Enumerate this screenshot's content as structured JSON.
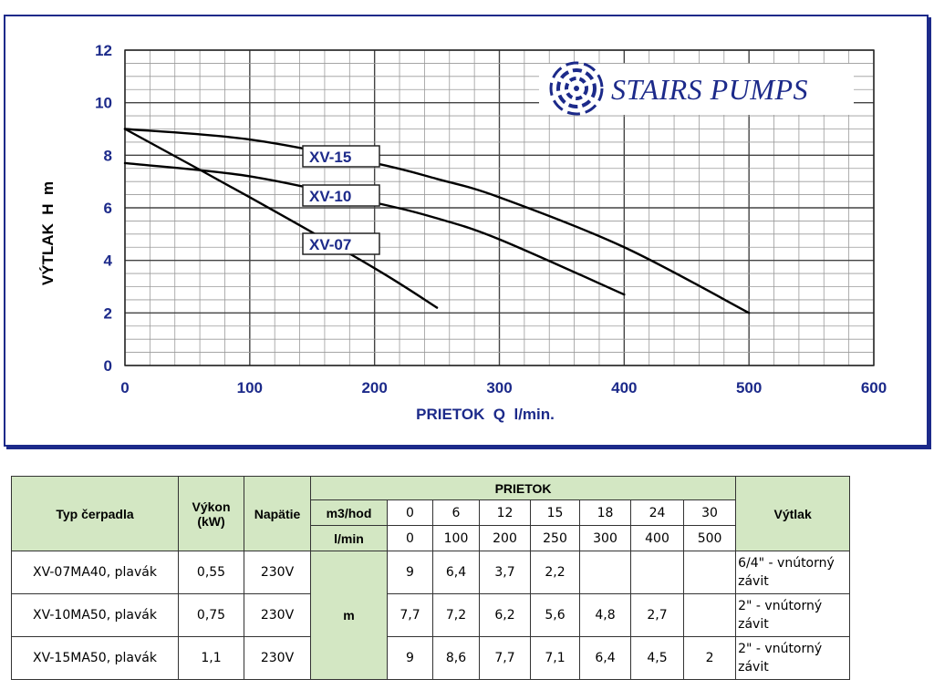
{
  "chart_data": {
    "type": "line",
    "xlabel": "PRIETOK  Q  l/min.",
    "ylabel": "VÝTLAK  H  m",
    "xlim": [
      0,
      600
    ],
    "ylim": [
      0,
      12
    ],
    "x_ticks": [
      "0",
      "100",
      "200",
      "300",
      "400",
      "500",
      "600"
    ],
    "y_ticks": [
      "0",
      "2",
      "4",
      "6",
      "8",
      "10",
      "12"
    ],
    "grid": true,
    "series": [
      {
        "name": "XV-07",
        "points": [
          [
            0,
            9.0
          ],
          [
            100,
            6.4
          ],
          [
            200,
            3.7
          ],
          [
            250,
            2.2
          ]
        ]
      },
      {
        "name": "XV-10",
        "points": [
          [
            0,
            7.7
          ],
          [
            100,
            7.2
          ],
          [
            200,
            6.2
          ],
          [
            250,
            5.6
          ],
          [
            300,
            4.8
          ],
          [
            400,
            2.7
          ]
        ]
      },
      {
        "name": "XV-15",
        "points": [
          [
            0,
            9.0
          ],
          [
            100,
            8.6
          ],
          [
            200,
            7.7
          ],
          [
            250,
            7.1
          ],
          [
            300,
            6.4
          ],
          [
            400,
            4.5
          ],
          [
            500,
            2.0
          ]
        ]
      }
    ],
    "line_color": "#000000"
  },
  "logo": {
    "text": "STAIRS PUMPS",
    "icon": "swirl-logo-icon",
    "color": "#1c2a8a"
  },
  "table": {
    "col_type": "Typ čerpadla",
    "col_power": "Výkon (kW)",
    "col_voltage": "Napätie",
    "flow_header": "PRIETOK",
    "unit_m3": "m3/hod",
    "unit_lmin": "l/min",
    "m3_values": [
      "0",
      "6",
      "12",
      "15",
      "18",
      "24",
      "30"
    ],
    "lmin_values": [
      "0",
      "100",
      "200",
      "250",
      "300",
      "400",
      "500"
    ],
    "col_discharge": "Výtlak",
    "head_unit": "m",
    "rows": [
      {
        "name": "XV-07MA40, plavák",
        "power": "0,55",
        "voltage": "230V",
        "values": [
          "9",
          "6,4",
          "3,7",
          "2,2",
          "",
          "",
          ""
        ],
        "discharge": "6/4\" - vnútorný závit"
      },
      {
        "name": "XV-10MA50, plavák",
        "power": "0,75",
        "voltage": "230V",
        "values": [
          "7,7",
          "7,2",
          "6,2",
          "5,6",
          "4,8",
          "2,7",
          ""
        ],
        "discharge": "2\" - vnútorný závit"
      },
      {
        "name": "XV-15MA50, plavák",
        "power": "1,1",
        "voltage": "230V",
        "values": [
          "9",
          "8,6",
          "7,7",
          "7,1",
          "6,4",
          "4,5",
          "2"
        ],
        "discharge": "2\" - vnútorný závit"
      }
    ],
    "header_color": "#d3e7c3"
  }
}
